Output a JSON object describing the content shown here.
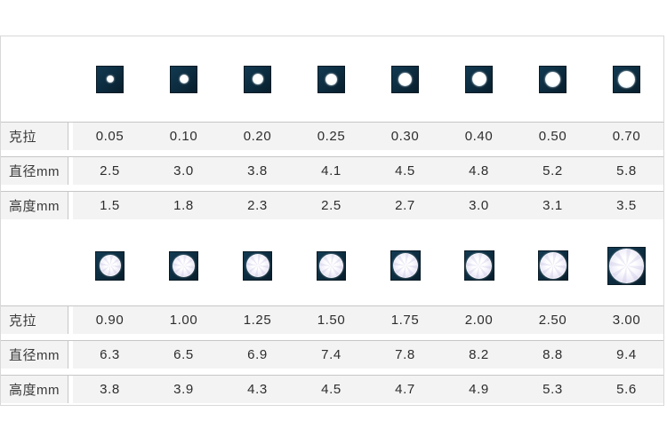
{
  "chart_data": {
    "type": "table",
    "row_headers": [
      "克拉",
      "直径mm",
      "高度mm"
    ],
    "tables": [
      {
        "rows": [
          {
            "label": "克拉",
            "values": [
              "0.05",
              "0.10",
              "0.20",
              "0.25",
              "0.30",
              "0.40",
              "0.50",
              "0.70"
            ]
          },
          {
            "label": "直径mm",
            "values": [
              "2.5",
              "3.0",
              "3.8",
              "4.1",
              "4.5",
              "4.8",
              "5.2",
              "5.8"
            ]
          },
          {
            "label": "高度mm",
            "values": [
              "1.5",
              "1.8",
              "2.3",
              "2.5",
              "2.7",
              "3.0",
              "3.1",
              "3.5"
            ]
          }
        ]
      },
      {
        "rows": [
          {
            "label": "克拉",
            "values": [
              "0.90",
              "1.00",
              "1.25",
              "1.50",
              "1.75",
              "2.00",
              "2.50",
              "3.00"
            ]
          },
          {
            "label": "直径mm",
            "values": [
              "6.3",
              "6.5",
              "6.9",
              "7.4",
              "7.8",
              "8.2",
              "8.8",
              "9.4"
            ]
          },
          {
            "label": "高度mm",
            "values": [
              "3.8",
              "3.9",
              "4.3",
              "4.5",
              "4.7",
              "4.9",
              "5.3",
              "5.6"
            ]
          }
        ]
      }
    ],
    "layout": {
      "sample_icons_per_strip": 8,
      "grid": "rows: samples + 3 value rows, twice"
    }
  },
  "colors": {
    "background": "#ffffff",
    "row_background": "#f3f3f3",
    "row_border": "#c6c6c6",
    "table_border": "#d8d8d8",
    "text": "#2d2d2d",
    "sample_square": "#0c2b3e",
    "stone_tint": "#e2def2"
  },
  "icons": {
    "sample_small": "diamond-dot-sample-icon",
    "sample_large": "diamond-round-sample-icon"
  }
}
